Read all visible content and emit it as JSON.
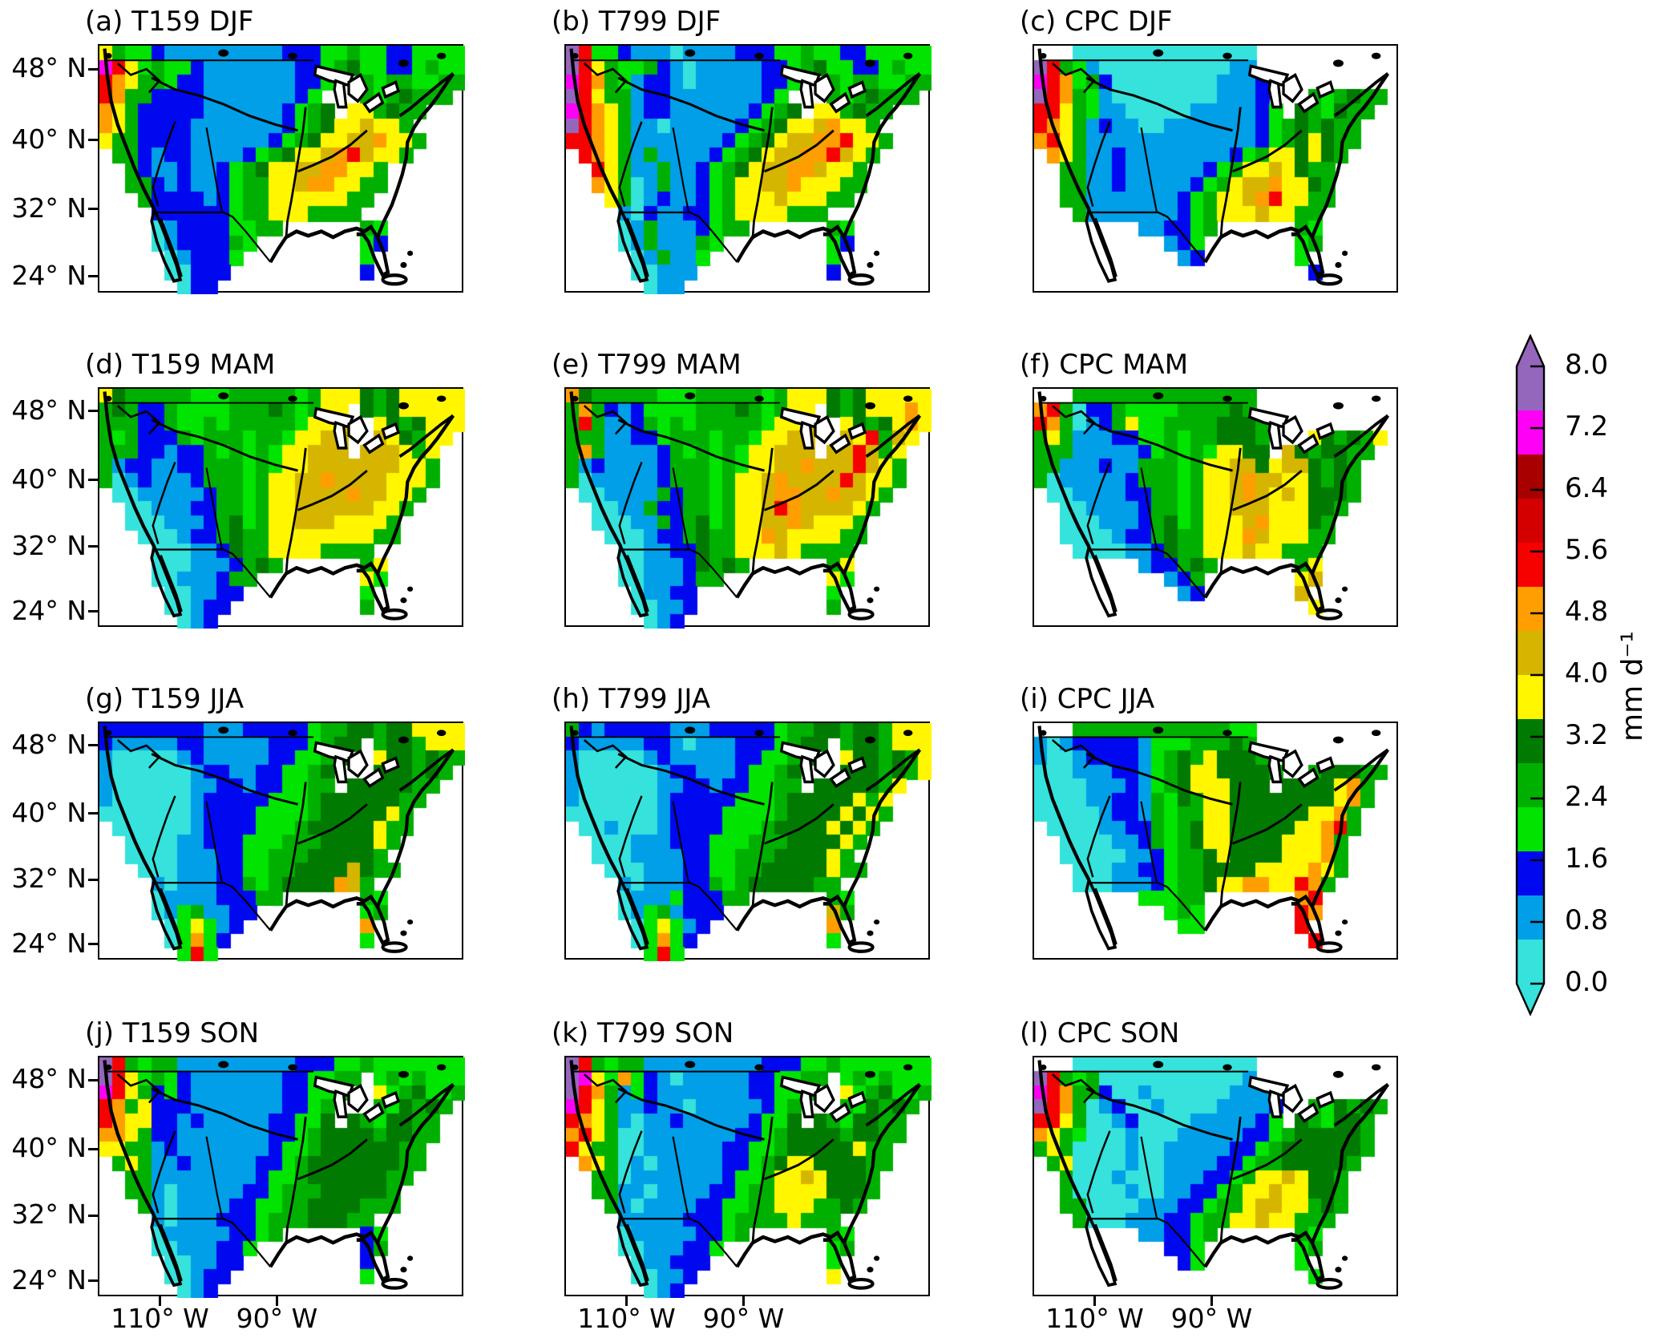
{
  "chart_data": {
    "type": "heatmap",
    "layout_hint": "4 rows (seasons DJF, MAM, JJA, SON) x 3 columns (T159 model, T799 model, CPC observations) of gridded precipitation maps over North America; discrete colorbar on right; ocean masked white; CPC panels masked to CONUS only",
    "x_axis": {
      "ticks": [
        "110° W",
        "90° W"
      ],
      "range_deg_west": [
        125,
        59
      ]
    },
    "y_axis": {
      "ticks": [
        "48° N",
        "40° N",
        "32° N",
        "24° N"
      ],
      "range_deg_north": [
        23,
        50.5
      ]
    },
    "colorbar": {
      "unit": "mm d⁻¹",
      "tick_labels_top_to_bottom": [
        "8.0",
        "7.2",
        "6.4",
        "5.6",
        "4.8",
        "4.0",
        "3.2",
        "2.4",
        "1.6",
        "0.8",
        "0.0"
      ],
      "range": [
        0.0,
        8.0
      ],
      "tick_step": 0.8,
      "segment_colors_top_to_bottom": [
        "#9467bd",
        "#ff00f6",
        "#a80000",
        "#d40000",
        "#f60000",
        "#ff9e00",
        "#d6b500",
        "#fff600",
        "#017a01",
        "#00b000",
        "#00e400",
        "#0008f0",
        "#009fe8",
        "#35e2dc"
      ],
      "overflow_arrow_top_color": "#9467bd",
      "underflow_arrow_bottom_color": "#35e2dc"
    },
    "palette": {
      ".": "#ffffff",
      "c": "#35e2dc",
      "l": "#009fe8",
      "b": "#0008f0",
      "G": "#00e400",
      "g": "#00b000",
      "d": "#017a01",
      "y": "#fff600",
      "Y": "#d6b500",
      "o": "#ff9e00",
      "r": "#f60000",
      "R": "#a80000",
      "m": "#ff00f6",
      "p": "#9467bd"
    },
    "code_value_mm_per_day": {
      "c": 0.4,
      "l": 1.0,
      "b": 1.6,
      "G": 2.2,
      "g": 2.7,
      "d": 3.2,
      "y": 3.7,
      "Y": 4.3,
      "o": 4.9,
      "r": 5.4,
      "R": 6.4,
      "m": 7.0,
      "p": 7.8,
      ".": null
    },
    "panels": [
      {
        "id": "a",
        "title": "(a) T159 DJF",
        "source": "T159",
        "season": "DJF",
        "row": 0,
        "col": 0,
        "mask": "ecmwf",
        "grid": [
          "ygGGblllllllllbbbGGgGGbbGGGG",
          "mryGgGGblllllllbbGgdGGbbGgGG",
          "royggGbblllllllbbG..gGggGGgg",
          "roggbbbblllllllbG...gGgdggg.",
          "oygbbbbbllllllbGgd.yygdgg...",
          "oygbbbblllllllbGgdyyYyyg....",
          "yggbbbbllllllbGgdyyYYoyyg...",
          ".ggblbbllllbGgdyyYorYyyg....",
          "..gbllbllbGgdyyYYooyyg......",
          "..ggblbllbGggyyYooyygg......",
          "...gbbbblbGggyyyyyygg.......",
          "....bbbbbbGggyyygggg........",
          "....clbbbbGGgg......gG......",
          "....clbbbbgG........Gb......",
          ".....clbbbG.........G.......",
          ".....ccbbb..........b.......",
          "......cbb..................."
        ]
      },
      {
        "id": "b",
        "title": "(b) T799 DJF",
        "source": "T799",
        "season": "DJF",
        "row": 0,
        "col": 1,
        "mask": "ecmwf",
        "grid": [
          "prGGblllcllllbbbGGgGGbbGGGGG",
          "prygGGgblclllllbbGgdGGbbGgGG",
          "mrogGlbblclllllbbG..gGggGGgg",
          "prygglbblllllllbG...gGgdggg.",
          "mroyglbbllllllbGgd.yygdgg...",
          "proygllclllllbGgdyyYoyyg....",
          "rroyglllllllbGgdyYYooryyg...",
          ".royglgllllbGgdyYYoorYyg....",
          "..rygllgllbGgdyYYooYyyg.....",
          "..oygclgllbGgyyYYoyyygg.....",
          "...ygclbllbGgyyyYyyygg......",
          "....lcbllbbGgyyyyggg........",
          "....clglllbGgg......gG......",
          "....clglllgG........Gb......",
          ".....clgllG.........G.......",
          ".....cclll..........b.......",
          "......cll..................."
        ]
      },
      {
        "id": "c",
        "title": "(c) CPC DJF",
        "source": "CPC",
        "season": "DJF",
        "row": 0,
        "col": 2,
        "mask": "cpc",
        "grid": [
          "...cccccccccccccc...........",
          "prgGlccccccccccll...........",
          "mroGgbcccccccclllb..........",
          "progGlcccccccclllb...gGgdgg.",
          "rrygGllccccclllllbG.dgGdgg..",
          "royglbllcclllllllbGgdgdgg...",
          "oryglllllllllllllbGgdydgg...",
          ".oygllbllllllllbGgyydydg....",
          "..ggllbllllllbGgyyYydgg.....",
          "..ggllblllllbGgyYYoyydg.....",
          "..gglllllllbGgyyYoryygg.....",
          "...glllllllbGgyyyYyygg......",
          "........llbbGg......gG......",
          "..........lbG.......Gg......",
          "...........lb.......G.......",
          ".....................b......",
          "............................"
        ]
      },
      {
        "id": "d",
        "title": "(d) T159 MAM",
        "source": "T159",
        "season": "MAM",
        "row": 1,
        "col": 0,
        "mask": "ecmwf",
        "grid": [
          "ydgggggGGGgggggGgyyydgdyyyyy",
          "gdgbbgGGGGgggdgGgyy.dgdyyyyy",
          "gggbbgGGgGgggggGyyY..ydgdyyy",
          "gGgbbbgGgggGggGyyYY..Yydgyy.",
          "gggbblbbgGgGgGyyYYY.YYYygy..",
          "glbbllbbgggGgGyyYYYYYYYyyg..",
          "gclblllbgggGgyyYYoYYYYyyyg..",
          ".cclllllbggGgyyYYYYoYYyyg...",
          "..cclllbbggGgyyYYYYYYyyg....",
          "..ccclllbgdGgyyYYYyyyyg.....",
          "...ccclbbgdggyyyyyyyygg.....",
          "....cccllbdggyyyygggg.......",
          "....ccclllbgdg......gy......",
          "....cclllbgg........yG......",
          ".....ccllbb.........G.......",
          ".....cclbb..........g.......",
          "......clb..................."
        ]
      },
      {
        "id": "e",
        "title": "(e) T799 MAM",
        "source": "T799",
        "season": "MAM",
        "row": 1,
        "col": 1,
        "mask": "ecmwf",
        "grid": [
          "odgggggGGGgggggGgyyydgdyyyyy",
          "gogblbGGGGgggdgGgyy.dgdyyyoy",
          "grgllbgGgGgggggGyyY..ydgdyoy",
          "gggllbbGgggGggGyyYY..YyrgYy.",
          "gogllllbgGgGgGyyYYY.YYrYgy..",
          "glbllllbgggGgGyyYYoYYYrYyg..",
          "gclllllbgggGgyyYoYYYYrYyyg..",
          ".ccllllgbggGgyyYooYYoYYyg...",
          "..ccllgbbggGgyyYroYYYYyg....",
          "..cccllgbgdGgyyYYoYyyyg.....",
          "...ccclbbgdggyyoYyyyygg.....",
          "....ccllbbdggyyyYygggg......",
          "....cclllbdgdg......gy......",
          "....cclllbgg........yG......",
          ".....cllbb..........G.......",
          ".....ccllb..........g.......",
          "......clb..................."
        ]
      },
      {
        "id": "f",
        "title": "(f) CPC MAM",
        "source": "CPC",
        "season": "MAM",
        "row": 1,
        "col": 2,
        "mask": "cpc",
        "grid": [
          "...gggggggggggggg...........",
          "orgcbbgGGGGggggdg...........",
          "rogclbgyGGggggdddg..........",
          "gyglllbbGGgGggdddg...ydgdgy.",
          "ggglllllbGgGgGyydd.Ydgddgg..",
          "gglllbllgggGgyyYYdyYYdgdg...",
          "gclllllbgggGgyyYoYYyydgdg...",
          ".ccllllbbggGgyyYoYyYydddg...",
          "..ccllllbggGgyyYYYyyyddg....",
          "..ccclllbgdGgyyyYoyyydg.....",
          "..cccclbbgdggyyyoYyyygg.....",
          "...ccccllbdggyyyYyyggg......",
          "........lbbgdg......gy......",
          "..........lbg.......yY......",
          "...........lb.......Y.......",
          ".....................y......",
          "............................"
        ]
      },
      {
        "id": "g",
        "title": "(g) T159 JJA",
        "source": "T159",
        "season": "JJA",
        "row": 2,
        "col": 0,
        "mask": "ecmwf",
        "grid": [
          "bbbbbbbblllbbbbbGggddgddyyyy",
          "blllllbblllllbbbGgdd.gddgyyy",
          "lccccclblllllbbGGgd..yddgdgg",
          "lcccccclbbllbbGGgd...dddgdg.",
          "lccccccllbblbbGGgg.dddddgg..",
          "lcccccclbbbbbGGGgddddddgg...",
          "ccccccclbbbbGGGGgdddddyg....",
          ".cccccclbbbbGGGgdddddygg....",
          "..ccccllbbbGGGgggddddyg.....",
          "..cccclllbbGGgggdddddg......",
          "...ccclllbbGGggddddYdgg.....",
          "....lclllbbgGgddddoYg.......",
          "....cllllbbbgg......gG......",
          "....clGgllbb........Gg......",
          ".....cGyGlb.........o.......",
          ".....cGoGb..........G.......",
          "......GrG..................."
        ]
      },
      {
        "id": "h",
        "title": "(h) T799 JJA",
        "source": "T799",
        "season": "JJA",
        "row": 2,
        "col": 1,
        "mask": "ecmwf",
        "grid": [
          "gblbbbbblllbbbbbGggddgddgyyy",
          "blllllbblclllbbbGgdd.gddgyyy",
          "lccccclblllllbbGGgd..yddgdgy",
          "lcccccclbblllbGGgd...dddgdgy",
          "lccccccllbblbbGGgg.dddddgy..",
          "lcccccclbbbbbGGGgdddddygy...",
          "ccccccclbbbbGGGGgddddydyg...",
          ".cclccclbbbbGGGgddddydyg....",
          "..ccclllbbbGGGgggddddyg.....",
          "..cccllllbbGGgggddddyg......",
          "...ccclllbbGGggdddddygg.....",
          "....lclllbbgGgdddddgg.......",
          "....clllGbbbgg......gG......",
          "....clGglbbb........Yg......",
          ".....cGyGlb.........o.......",
          ".....cGoGb..........G.......",
          "......GrG..................."
        ]
      },
      {
        "id": "i",
        "title": "(i) CPC JJA",
        "source": "CPC",
        "season": "JJA",
        "row": 2,
        "col": 2,
        "mask": "cpc",
        "grid": [
          "...ggggggggggggGG...........",
          "lclbbbbblGGGgggdg...........",
          "lcclbbbblGgdgydddg..........",
          "ccclllbblGgdyyddddg..gdddgg.",
          "cccclllblGgdyyyddd.ddddyog..",
          "ccccllbblgGdgyyddddddddyog..",
          "ccccclbblgGggyyddddddyyog...",
          ".ccccllbbgGgdyydddddyyorg...",
          "..ccccllbgGgdyyddddyyyog....",
          "..cccccllbGggdyddddyyyog....",
          "...cccllbbGggddddyyyyoyg....",
          "...ccclllbGggdyyooyyrog.....",
          "........GGGgg.......or......",
          "..........GgG.......ro......",
          "...........GG.......r.......",
          ".....................r......",
          "............................"
        ]
      },
      {
        "id": "j",
        "title": "(j) T159 SON",
        "source": "T159",
        "season": "SON",
        "row": 3,
        "col": 0,
        "mask": "ecmwf",
        "grid": [
          "prgGgglllllllllbbbGGgGGGGGGG",
          "pryGgGblllllllbbGGgg.GgGgGGG",
          "mrygbGblllllllbbGGg..yGgdGGg",
          "rogybbblllllllbbGg...gGdgdg.",
          "royybblblllllbbGGd.dgGddgg..",
          "ooygbblllllllbbGgddddgddgg..",
          "yygglblllllllbGGgddddddgg...",
          ".gygllblllllbbGgdddddddgg...",
          "..ggllllllllbGGgddddddgg....",
          "..gglclllllbbGgggdddddg.....",
          "...glcllllbbGGggddddggg.....",
          "....lclllbbbGgggdddgg.......",
          "....clllllbbGg......bG......",
          "....cclllbbG........bg......",
          ".....ccllbb.........b.......",
          ".....cclbb..........G.......",
          "......clb..................."
        ]
      },
      {
        "id": "k",
        "title": "(k) T799 SON",
        "source": "T799",
        "season": "SON",
        "row": 3,
        "col": 1,
        "mask": "ecmwf",
        "grid": [
          "prgGgglllllllllbbbGGgGGGGGGG",
          "pmyGoGblclllllbbGGgg.GgGgGGG",
          "proglGblllllllbbGGg..yGgdGGg",
          "mrygllbllclllllbGg...gGdgdg.",
          "royglcllblllllbGGd.dgGddgg..",
          "orygcclllllllbbGgddddgddgg..",
          "ryggccllllllbbGGgdddddygg...",
          ".oygclclllllbbGgdyyddddgg...",
          "..ggclllllllbGGgyyYydddg....",
          "..ggllcllllbbGggyyyydddg....",
          "...glcllllbbGGggyyyggdg.....",
          "....lllllbbbGggggyggg.......",
          "....clllllbbGg......gG......",
          "....cclllbbG........Gg......",
          ".....cllbbb.........G.......",
          ".....ccllb..........y.......",
          "......clb..................."
        ]
      },
      {
        "id": "l",
        "title": "(l) CPC SON",
        "source": "CPC",
        "season": "SON",
        "row": 3,
        "col": 2,
        "mask": "cpc",
        "grid": [
          "...cccccccccccccc...........",
          "prgGgcccccccccccl...........",
          "mroggbcclcccccclll..........",
          "progclbcclccccllllb..gGdgdg.",
          "rrygcclbcccclllllbG.dgGddg..",
          "oygGccclccclllllbbGgdddddg..",
          "gygcccclcclllllbbGgddddddg..",
          ".gycccclccllllbbGggdddddg...",
          "..gccclccclllbbGgyyYyddg....",
          "..gcccclccllbbGgyyYyyddg....",
          "..ggcccclllbbGggyYYyygdg....",
          "...gccclllbbGggyyYyyggg.....",
          "........llbbGg......gG......",
          "..........bbG.......Gg......",
          "...........bG.......G.......",
          ".....................G......",
          "............................"
        ]
      }
    ]
  }
}
